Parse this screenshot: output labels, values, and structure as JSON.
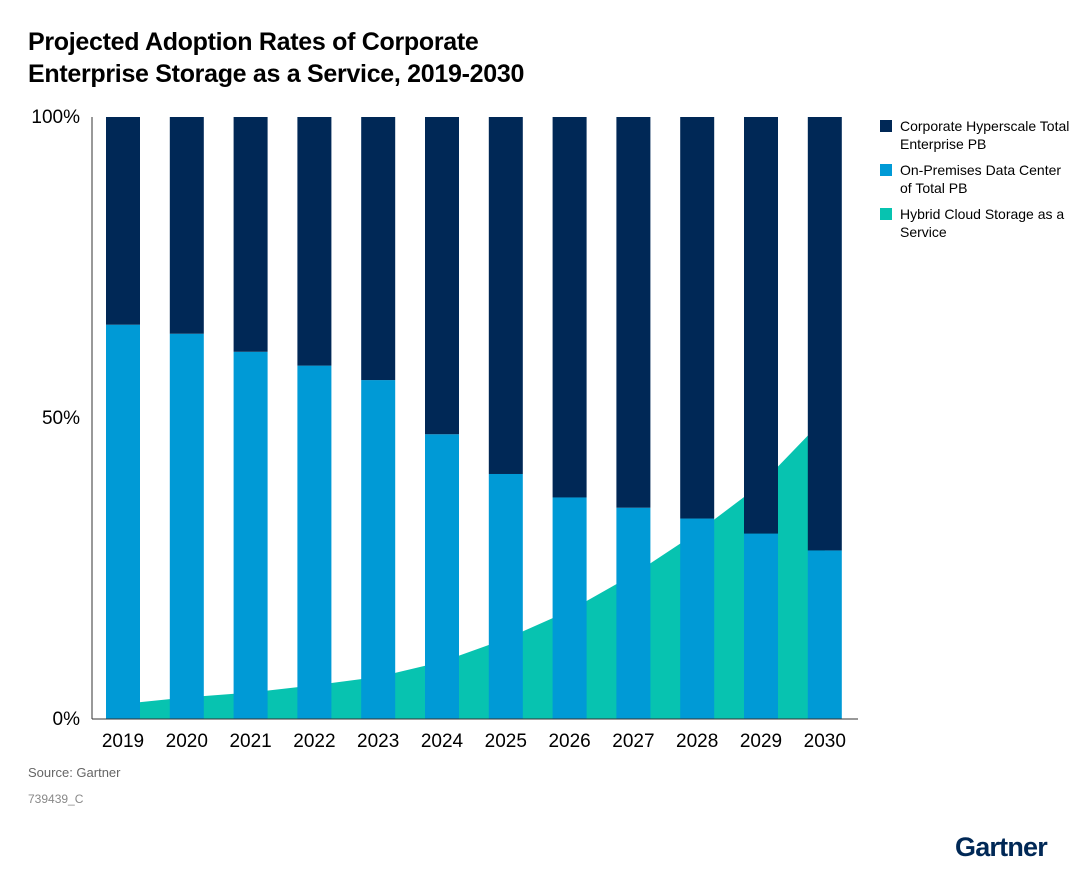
{
  "title_lines": [
    "Projected Adoption Rates of Corporate",
    "Enterprise Storage as a Service, 2019-2030"
  ],
  "source": "Source: Gartner",
  "code": "739439_C",
  "logo": "Gartner",
  "legend": [
    {
      "label": "Corporate Hyperscale Total Enterprise PB",
      "color": "#002856"
    },
    {
      "label": "On-Premises Data Center of Total PB",
      "color": "#009ad6"
    },
    {
      "label": "Hybrid Cloud Storage as a Service",
      "color": "#07c3b0"
    }
  ],
  "chart_data": {
    "type": "bar",
    "stacked": true,
    "categories": [
      "2019",
      "2020",
      "2021",
      "2022",
      "2023",
      "2024",
      "2025",
      "2026",
      "2027",
      "2028",
      "2029",
      "2030"
    ],
    "y_ticks": [
      "0%",
      "50%",
      "100%"
    ],
    "ylim": [
      0,
      100
    ],
    "series": [
      {
        "name": "On-Premises Data Center of Total PB",
        "color": "#009ad6",
        "values": [
          65.5,
          64,
          61,
          58.7,
          56.3,
          47.3,
          40.7,
          36.8,
          35.1,
          33.3,
          30.8,
          28
        ]
      },
      {
        "name": "Corporate Hyperscale Total Enterprise PB",
        "color": "#002856",
        "values": [
          34.5,
          36,
          39,
          41.3,
          43.7,
          52.7,
          59.3,
          63.2,
          64.9,
          66.7,
          69.2,
          72
        ]
      }
    ],
    "area": {
      "name": "Hybrid Cloud Storage as a Service",
      "color": "#07c3b0",
      "values": [
        2.5,
        3.6,
        4.4,
        5.6,
        7.0,
        9.5,
        13.3,
        18.0,
        24.0,
        31.0,
        39.0,
        50.0
      ]
    }
  }
}
